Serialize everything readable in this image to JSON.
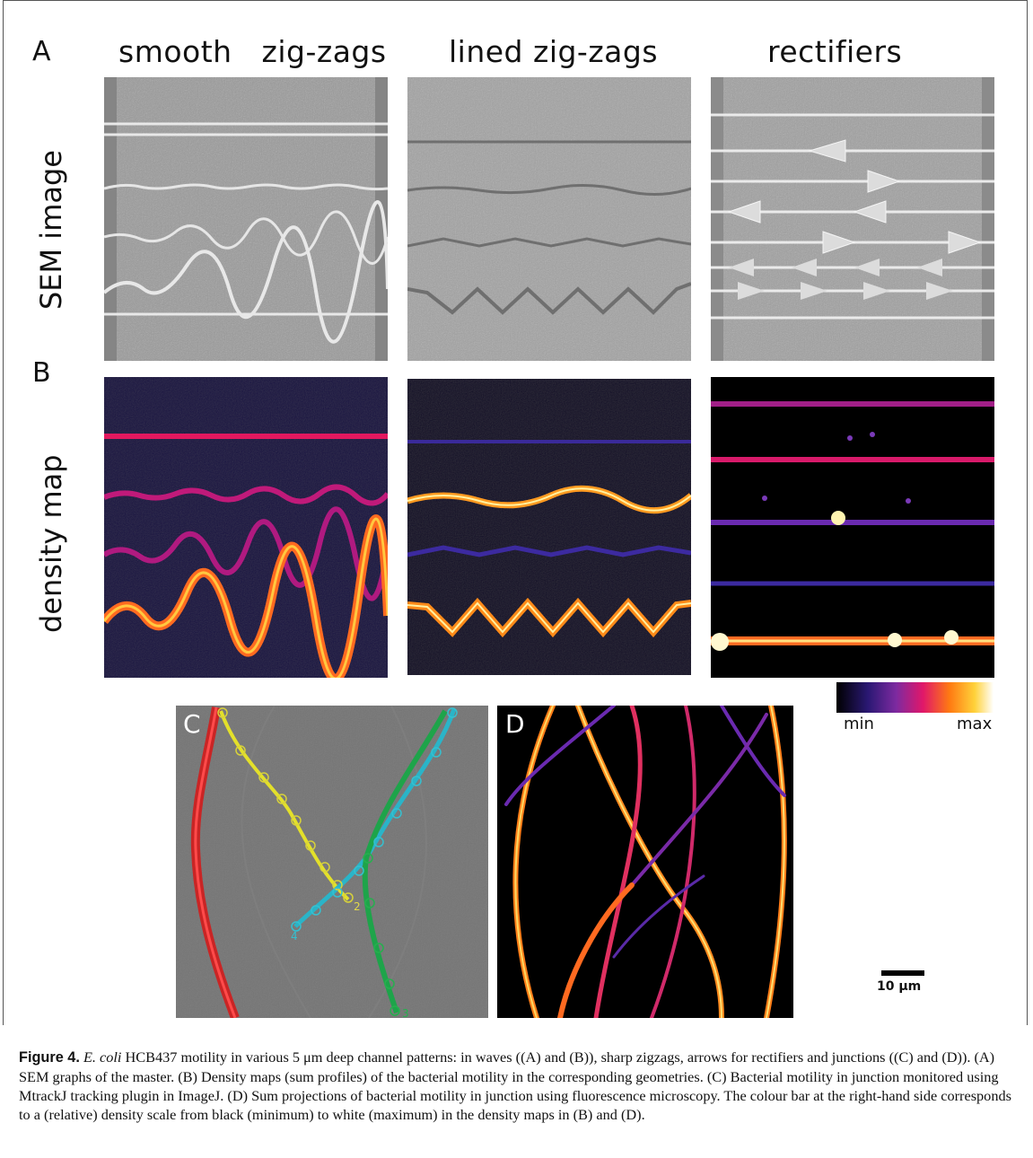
{
  "panels": {
    "A": "A",
    "B": "B",
    "C": "C",
    "D": "D"
  },
  "columns": [
    "smooth   zig-zags",
    "lined zig-zags",
    "rectifiers"
  ],
  "rows": [
    "SEM image",
    "density map"
  ],
  "colorbar": {
    "min": "min",
    "max": "max"
  },
  "scale_bar": "10 μm",
  "track_numbers": [
    "2",
    "4",
    "3"
  ],
  "caption": {
    "label": "Figure 4.",
    "species": "E. coli",
    "text": " HCB437 motility in various 5 μm deep channel patterns: in waves ((A) and (B)), sharp zigzags, arrows for rectifiers and junctions ((C) and (D)). (A) SEM graphs of the master. (B) Density maps (sum profiles) of the bacterial motility in the corresponding geometries. (C) Bacterial motility in junction monitored using MtrackJ tracking plugin in ImageJ. (D) Sum projections of bacterial motility in junction using fluorescence microscopy. The colour bar at the right-hand side corresponds to a (relative) density scale from black (minimum) to white (maximum) in the density maps in (B) and (D)."
  }
}
